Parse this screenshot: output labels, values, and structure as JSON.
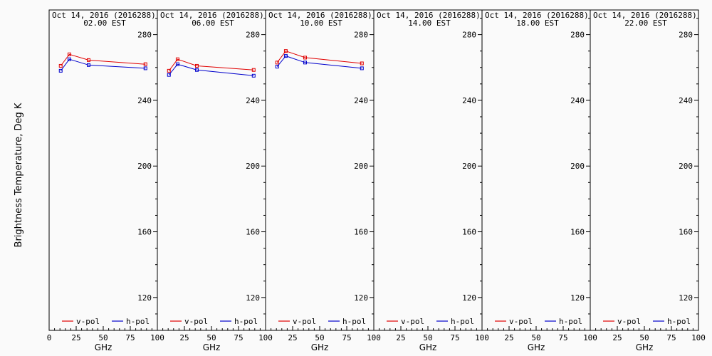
{
  "figure": {
    "ylabel": "Brightness Temperature, Deg K",
    "xlabel": "GHz"
  },
  "chart_data": [
    {
      "type": "line",
      "title_line1": "Oct 14, 2016 (2016288)",
      "title_line2": "02.00 EST",
      "xlim": [
        0,
        100
      ],
      "ylim": [
        100,
        295
      ],
      "x_ticks": [
        "0",
        "25",
        "50",
        "75",
        "100"
      ],
      "y_ticks": [
        "120",
        "160",
        "200",
        "240",
        "280"
      ],
      "x": [
        10.7,
        18.7,
        36.5,
        89
      ],
      "series": [
        {
          "name": "v-pol",
          "color": "#e00000",
          "values": [
            261,
            268,
            264.5,
            262
          ]
        },
        {
          "name": "h-pol",
          "color": "#0000cc",
          "values": [
            258,
            265,
            261.5,
            259.5
          ]
        }
      ]
    },
    {
      "type": "line",
      "title_line1": "Oct 14, 2016 (2016288)",
      "title_line2": "06.00 EST",
      "xlim": [
        0,
        100
      ],
      "ylim": [
        100,
        295
      ],
      "x_ticks": [
        "0",
        "25",
        "50",
        "75",
        "100"
      ],
      "y_ticks": [
        "120",
        "160",
        "200",
        "240",
        "280"
      ],
      "x": [
        10.7,
        18.7,
        36.5,
        89
      ],
      "series": [
        {
          "name": "v-pol",
          "color": "#e00000",
          "values": [
            258,
            265,
            261,
            258.5
          ]
        },
        {
          "name": "h-pol",
          "color": "#0000cc",
          "values": [
            255.5,
            262,
            258.5,
            255
          ]
        }
      ]
    },
    {
      "type": "line",
      "title_line1": "Oct 14, 2016 (2016288)",
      "title_line2": "10.00 EST",
      "xlim": [
        0,
        100
      ],
      "ylim": [
        100,
        295
      ],
      "x_ticks": [
        "0",
        "25",
        "50",
        "75",
        "100"
      ],
      "y_ticks": [
        "120",
        "160",
        "200",
        "240",
        "280"
      ],
      "x": [
        10.7,
        18.7,
        36.5,
        89
      ],
      "series": [
        {
          "name": "v-pol",
          "color": "#e00000",
          "values": [
            263,
            270,
            266,
            262.5
          ]
        },
        {
          "name": "h-pol",
          "color": "#0000cc",
          "values": [
            260.5,
            267,
            263,
            259.5
          ]
        }
      ]
    },
    {
      "type": "line",
      "title_line1": "Oct 14, 2016 (2016288)",
      "title_line2": "14.00 EST",
      "xlim": [
        0,
        100
      ],
      "ylim": [
        100,
        295
      ],
      "x_ticks": [
        "0",
        "25",
        "50",
        "75",
        "100"
      ],
      "y_ticks": [
        "120",
        "160",
        "200",
        "240",
        "280"
      ],
      "x": [],
      "series": [
        {
          "name": "v-pol",
          "color": "#e00000",
          "values": []
        },
        {
          "name": "h-pol",
          "color": "#0000cc",
          "values": []
        }
      ]
    },
    {
      "type": "line",
      "title_line1": "Oct 14, 2016 (2016288)",
      "title_line2": "18.00 EST",
      "xlim": [
        0,
        100
      ],
      "ylim": [
        100,
        295
      ],
      "x_ticks": [
        "0",
        "25",
        "50",
        "75",
        "100"
      ],
      "y_ticks": [
        "120",
        "160",
        "200",
        "240",
        "280"
      ],
      "x": [],
      "series": [
        {
          "name": "v-pol",
          "color": "#e00000",
          "values": []
        },
        {
          "name": "h-pol",
          "color": "#0000cc",
          "values": []
        }
      ]
    },
    {
      "type": "line",
      "title_line1": "Oct 14, 2016 (2016288)",
      "title_line2": "22.00 EST",
      "xlim": [
        0,
        100
      ],
      "ylim": [
        100,
        295
      ],
      "x_ticks": [
        "0",
        "25",
        "50",
        "75",
        "100"
      ],
      "y_ticks": [
        "120",
        "160",
        "200",
        "240",
        "280"
      ],
      "x": [],
      "series": [
        {
          "name": "v-pol",
          "color": "#e00000",
          "values": []
        },
        {
          "name": "h-pol",
          "color": "#0000cc",
          "values": []
        }
      ]
    }
  ]
}
